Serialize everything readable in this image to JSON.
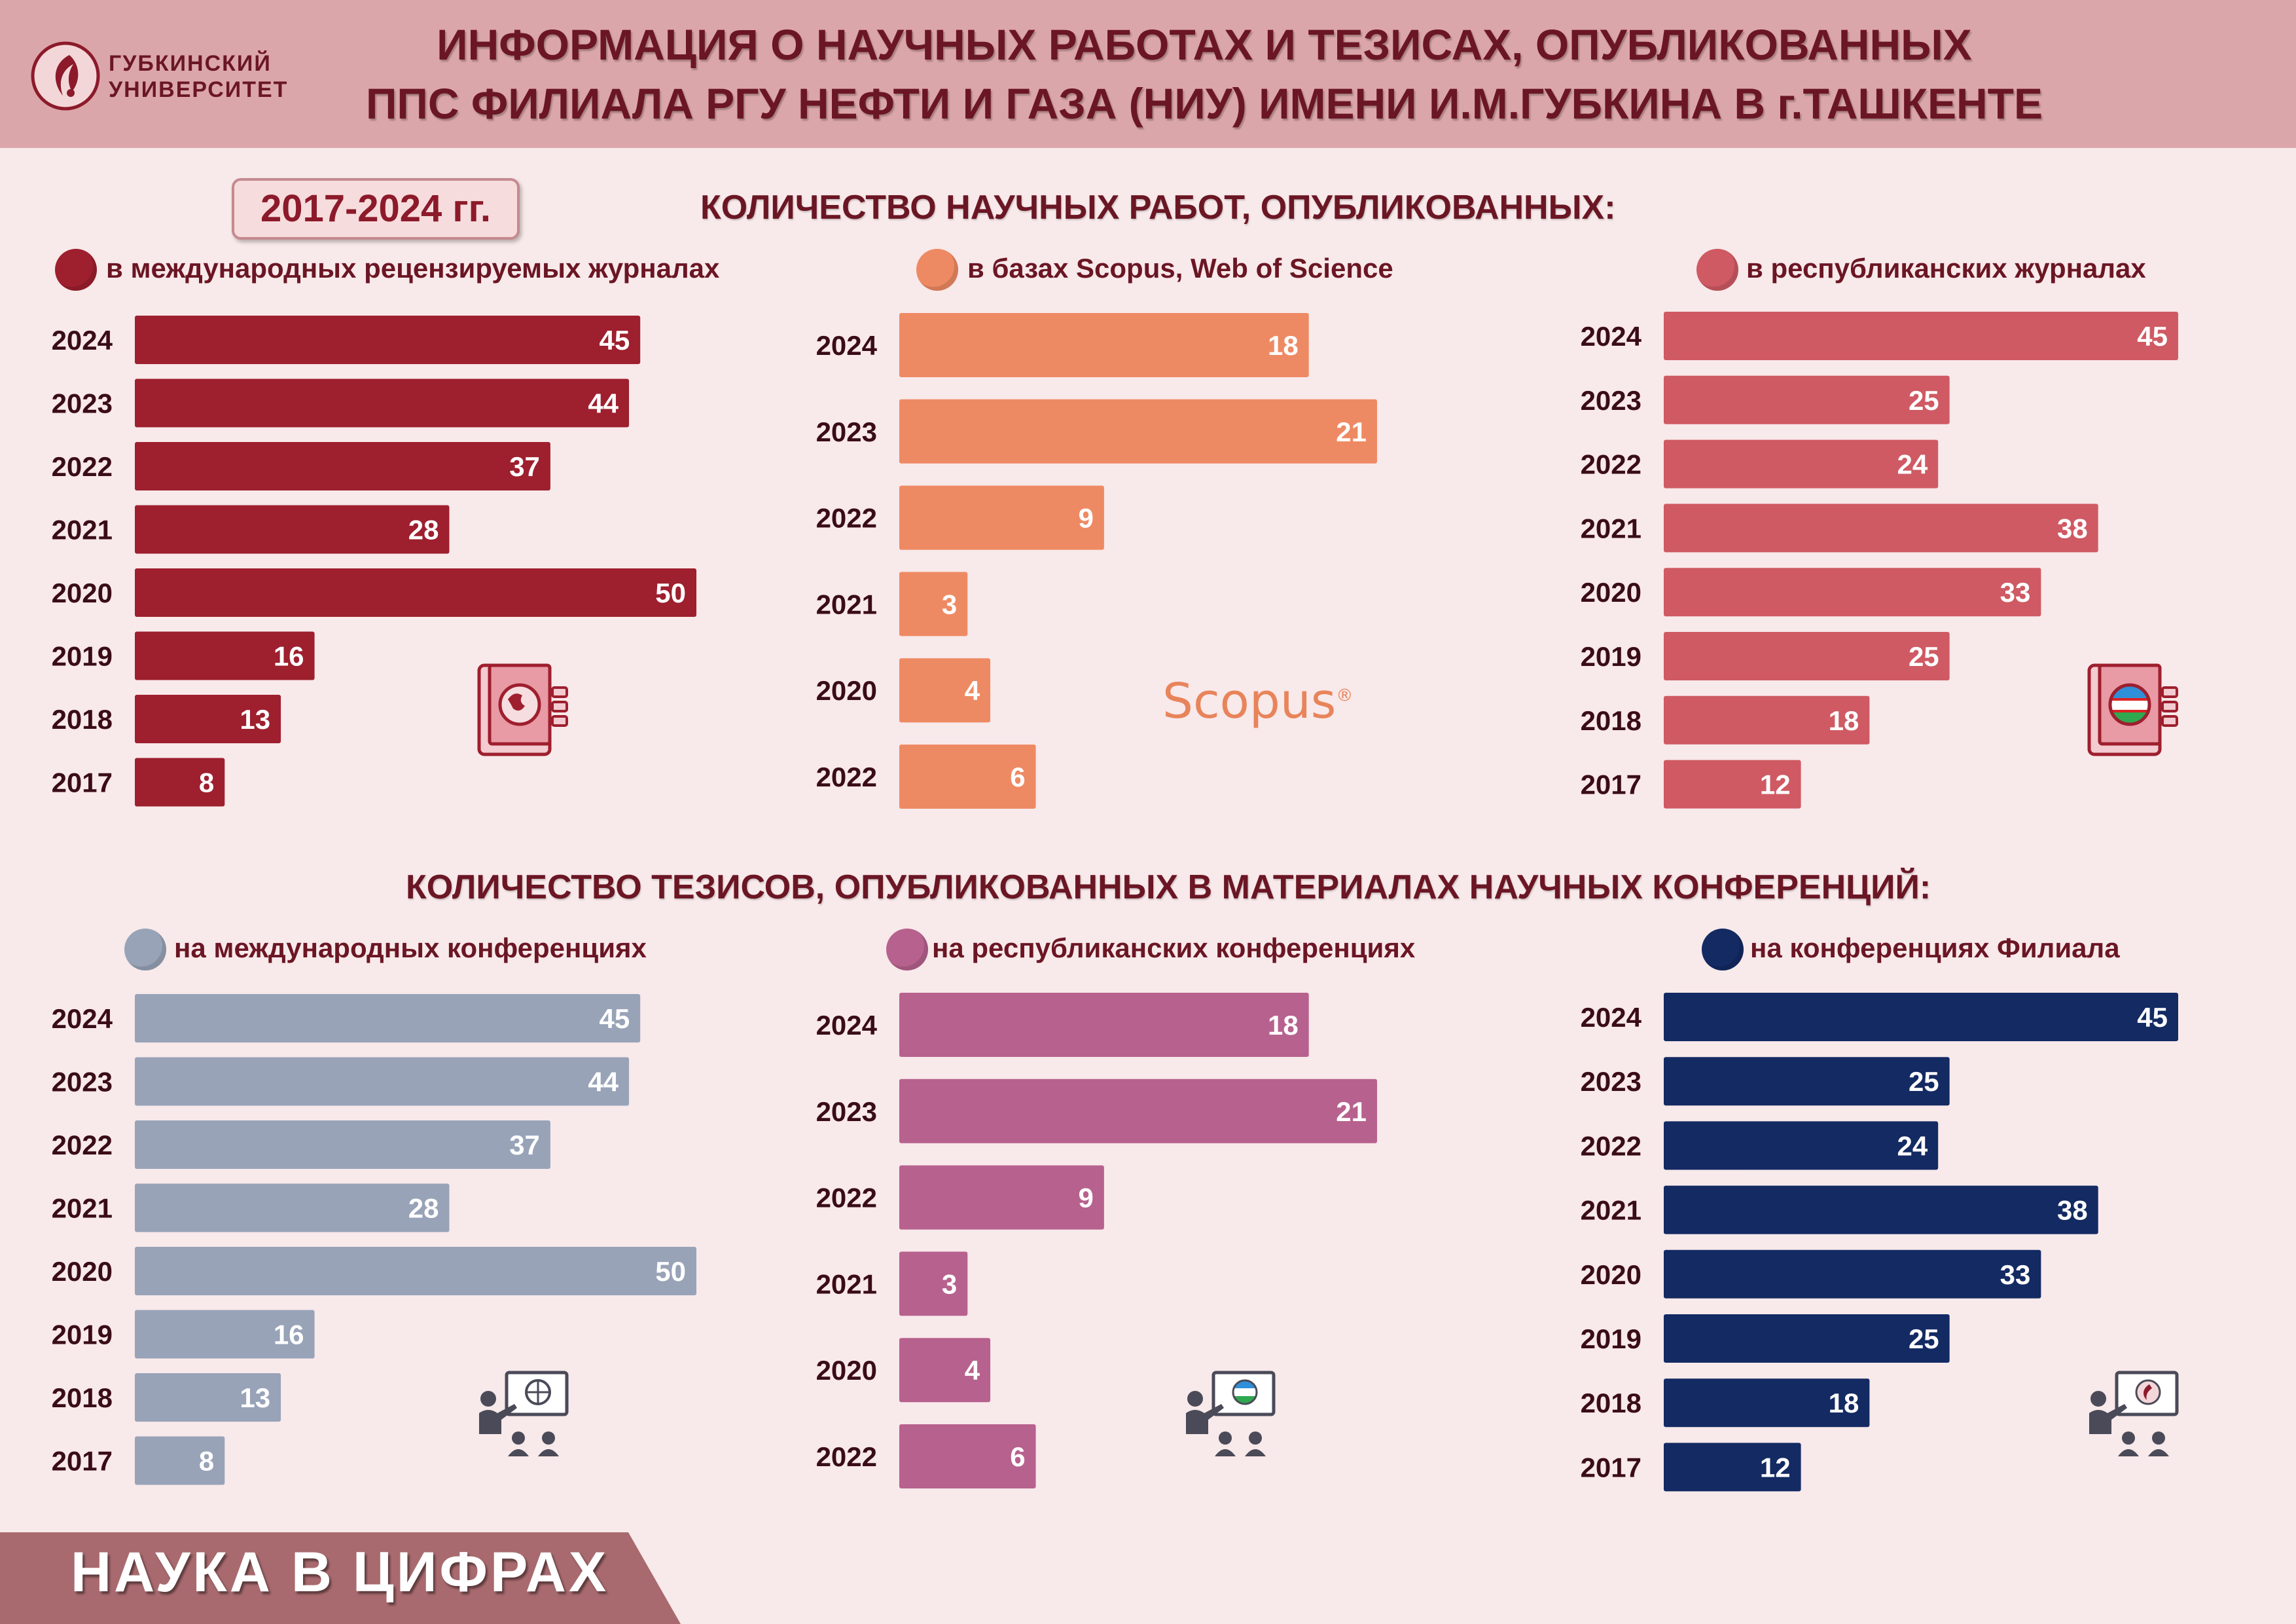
{
  "header": {
    "logo_line1": "ГУБКИНСКИЙ",
    "logo_line2": "УНИВЕРСИТЕТ",
    "title_line1": "ИНФОРМАЦИЯ О НАУЧНЫХ РАБОТАХ И ТЕЗИСАХ, ОПУБЛИКОВАННЫХ",
    "title_line2": "ППС ФИЛИАЛА РГУ НЕФТИ И ГАЗА (НИУ) ИМЕНИ И.М.ГУБКИНА В г.ТАШКЕНТЕ"
  },
  "period": "2017-2024 гг.",
  "section1_title": "КОЛИЧЕСТВО НАУЧНЫХ РАБОТ, ОПУБЛИКОВАННЫХ:",
  "section2_title": "КОЛИЧЕСТВО ТЕЗИСОВ, ОПУБЛИКОВАННЫХ В МАТЕРИАЛАХ НАУЧНЫХ КОНФЕРЕНЦИЙ:",
  "scopus_logo": "Scopus",
  "footer": "НАУКА В ЦИФРАХ",
  "colors": {
    "intl_journals": "#9e1f2e",
    "scopus": "#ee8a63",
    "rep_journals": "#cf5a63",
    "intl_conf": "#98a3b8",
    "rep_conf": "#b7618e",
    "branch_conf": "#132a63",
    "header_bg": "#dba6aa",
    "page_bg": "#f8e9ea",
    "footer_bg": "#a86a6e"
  },
  "icons": {
    "intl_journals": "globe-book-icon",
    "rep_journals": "uzbek-flag-book-icon",
    "intl_conf": "globe-presentation-icon",
    "rep_conf": "uzbek-flag-presentation-icon",
    "branch_conf": "logo-presentation-icon"
  },
  "chart_data": [
    {
      "type": "bar",
      "orientation": "horizontal",
      "legend": "в международных рецензируемых журналах",
      "categories": [
        "2024",
        "2023",
        "2022",
        "2021",
        "2020",
        "2019",
        "2018",
        "2017"
      ],
      "values": [
        45,
        44,
        37,
        28,
        50,
        16,
        13,
        8
      ],
      "color": "#9e1f2e",
      "xlim": [
        0,
        50
      ]
    },
    {
      "type": "bar",
      "orientation": "horizontal",
      "legend": "в базах Scopus, Web of Science",
      "categories": [
        "2024",
        "2023",
        "2022",
        "2021",
        "2020",
        "2022"
      ],
      "values": [
        18,
        21,
        9,
        3,
        4,
        6
      ],
      "color": "#ee8a63",
      "xlim": [
        0,
        21
      ]
    },
    {
      "type": "bar",
      "orientation": "horizontal",
      "legend": "в республиканских журналах",
      "categories": [
        "2024",
        "2023",
        "2022",
        "2021",
        "2020",
        "2019",
        "2018",
        "2017"
      ],
      "values": [
        45,
        25,
        24,
        38,
        33,
        25,
        18,
        12
      ],
      "color": "#cf5a63",
      "xlim": [
        0,
        45
      ]
    },
    {
      "type": "bar",
      "orientation": "horizontal",
      "legend": "на международных конференциях",
      "categories": [
        "2024",
        "2023",
        "2022",
        "2021",
        "2020",
        "2019",
        "2018",
        "2017"
      ],
      "values": [
        45,
        44,
        37,
        28,
        50,
        16,
        13,
        8
      ],
      "color": "#98a3b8",
      "xlim": [
        0,
        50
      ]
    },
    {
      "type": "bar",
      "orientation": "horizontal",
      "legend": "на республиканских конференциях",
      "categories": [
        "2024",
        "2023",
        "2022",
        "2021",
        "2020",
        "2022"
      ],
      "values": [
        18,
        21,
        9,
        3,
        4,
        6
      ],
      "color": "#b7618e",
      "xlim": [
        0,
        21
      ]
    },
    {
      "type": "bar",
      "orientation": "horizontal",
      "legend": "на конференциях Филиала",
      "categories": [
        "2024",
        "2023",
        "2022",
        "2021",
        "2020",
        "2019",
        "2018",
        "2017"
      ],
      "values": [
        45,
        25,
        24,
        38,
        33,
        25,
        18,
        12
      ],
      "color": "#132a63",
      "xlim": [
        0,
        45
      ]
    }
  ]
}
